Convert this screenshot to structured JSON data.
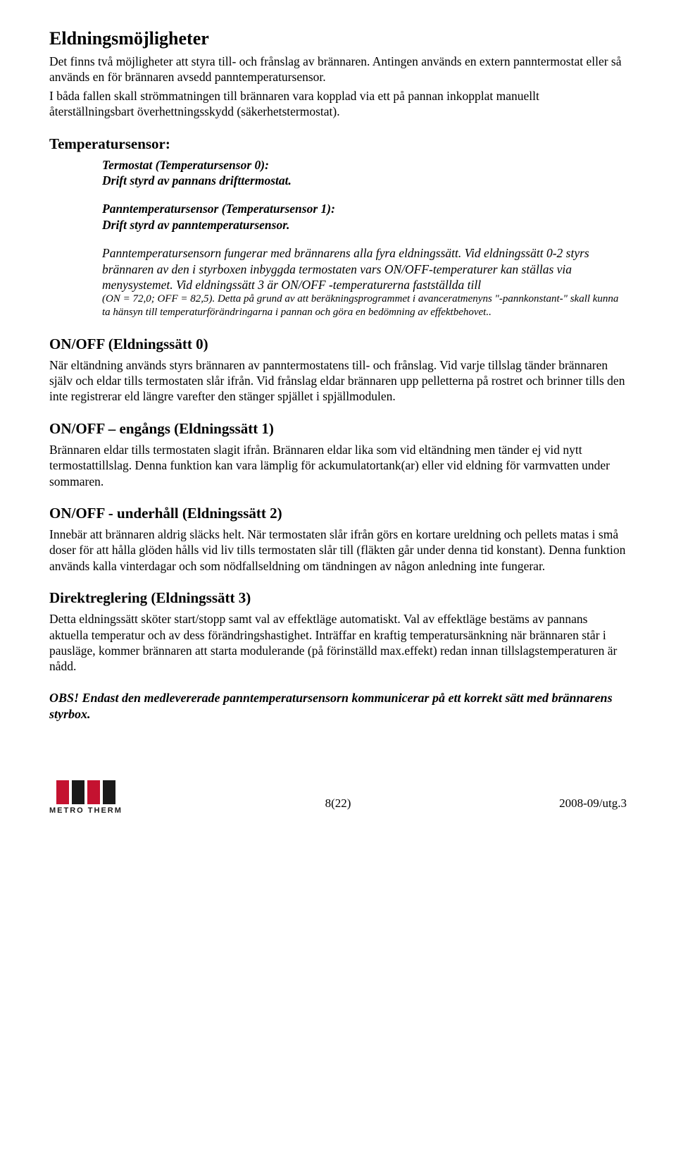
{
  "section_main": {
    "title": "Eldningsmöjligheter",
    "para1": "Det finns två möjligheter att styra till- och frånslag av brännaren. Antingen används en extern panntermostat eller så används en för brännaren avsedd panntemperatursensor.",
    "para2": "I båda fallen skall strömmatningen till brännaren vara kopplad via ett på pannan inkopplat manuellt återställningsbart överhettningsskydd (säkerhetstermostat)."
  },
  "tempsensor": {
    "heading": "Temperatursensor:",
    "s0_title": "Termostat (Temperatursensor 0):",
    "s0_body": "Drift styrd av pannans drifttermostat.",
    "s1_title": "Panntemperatursensor (Temperatursensor 1):",
    "s1_body": "Drift styrd av panntemperatursensor.",
    "explain_italic": "Panntemperatursensorn fungerar med brännarens alla fyra eldningssätt. Vid eldningssätt 0-2 styrs brännaren av den i styrboxen  inbyggda termostaten vars ON/OFF-temperaturer kan ställas via menysystemet. Vid eldningssätt 3 är ON/OFF -temperaturerna fastställda till",
    "explain_small": "(ON = 72,0; OFF = 82,5). Detta på grund av att beräkningsprogrammet i avanceratmenyns \"-pannkonstant-\" skall kunna ta hänsyn till  temperaturförändringarna i pannan och göra en bedömning av effektbehovet.."
  },
  "mode0": {
    "heading": "ON/OFF (Eldningssätt 0)",
    "body": "När eltändning används styrs brännaren av panntermostatens till- och frånslag. Vid varje tillslag tänder brännaren själv och eldar tills termostaten slår ifrån. Vid frånslag eldar brännaren upp pelletterna på rostret och brinner tills den inte registrerar eld längre varefter den stänger spjället i spjällmodulen."
  },
  "mode1": {
    "heading": "ON/OFF – engångs (Eldningssätt 1)",
    "body": "Brännaren eldar tills termostaten slagit ifrån. Brännaren eldar lika som vid eltändning men tänder ej vid nytt termostattillslag. Denna funktion kan vara lämplig för ackumulatortank(ar) eller vid eldning för varmvatten under sommaren."
  },
  "mode2": {
    "heading": "ON/OFF - underhåll (Eldningssätt 2)",
    "body": "Innebär att brännaren aldrig släcks helt. När termostaten slår ifrån görs en kortare ureldning och pellets matas i små doser för att hålla glöden hålls vid liv tills termostaten slår till (fläkten går under denna tid konstant). Denna funktion används kalla vinterdagar och som nödfallseldning om tändningen av någon anledning inte fungerar."
  },
  "mode3": {
    "heading": "Direktreglering (Eldningssätt 3)",
    "body": "Detta eldningssätt sköter start/stopp samt val av effektläge automatiskt. Val av effektläge bestäms av pannans aktuella temperatur och av dess förändringshastighet. Inträffar en kraftig temperatursänkning när brännaren står i pausläge, kommer brännaren att starta modulerande (på förinställd max.effekt) redan innan tillslagstemperaturen är nådd."
  },
  "obs": "OBS! Endast den medlevererade panntemperatursensorn kommunicerar på ett korrekt sätt med brännarens styrbox.",
  "footer": {
    "logo_text": "METRO THERM",
    "logo_colors": {
      "red": "#c41230",
      "black": "#1a1a1a"
    },
    "page_number": "8(22)",
    "version": "2008-09/utg.3"
  }
}
